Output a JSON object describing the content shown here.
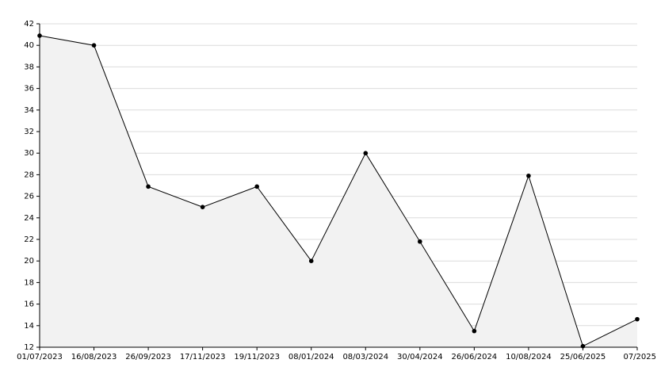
{
  "chart_data": {
    "type": "area",
    "categories": [
      "01/07/2023",
      "16/08/2023",
      "26/09/2023",
      "17/11/2023",
      "19/11/2023",
      "08/01/2024",
      "08/03/2024",
      "30/04/2024",
      "26/06/2024",
      "10/08/2024",
      "25/06/2025",
      "07/2025"
    ],
    "values": [
      40.9,
      40,
      26.9,
      25,
      26.9,
      20,
      30,
      21.8,
      13.5,
      27.9,
      12.1,
      14.6
    ],
    "color": "#000000",
    "fill": "#f2f2f2",
    "ylim": [
      12,
      42
    ],
    "yticks": [
      12,
      14,
      16,
      18,
      20,
      22,
      24,
      26,
      28,
      30,
      32,
      34,
      36,
      38,
      40,
      42
    ],
    "grid": true
  }
}
